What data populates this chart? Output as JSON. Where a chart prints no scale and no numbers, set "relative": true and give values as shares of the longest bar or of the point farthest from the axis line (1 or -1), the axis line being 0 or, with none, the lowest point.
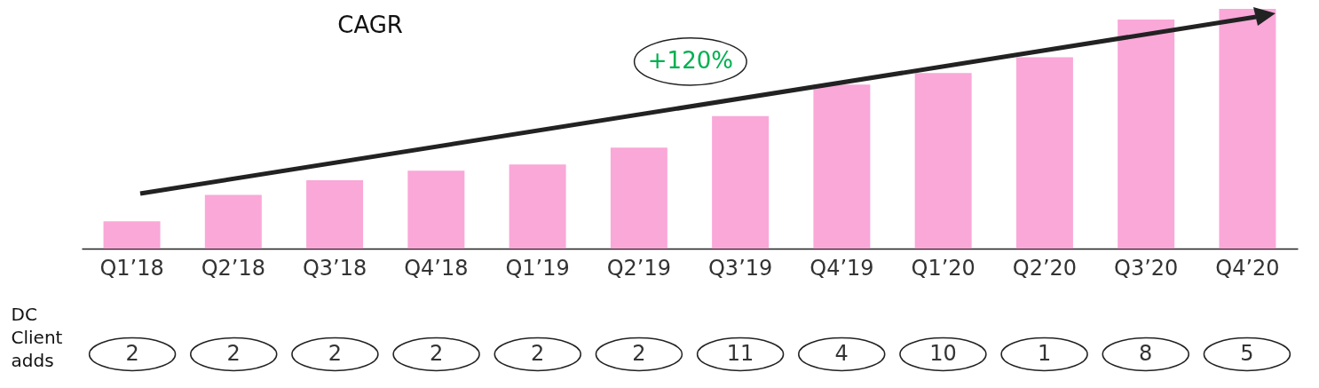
{
  "chart_data": [
    {
      "type": "bar",
      "relative": true,
      "categories": [
        "Q1’18",
        "Q2’18",
        "Q3’18",
        "Q4’18",
        "Q1’19",
        "Q2’19",
        "Q3’19",
        "Q4’19",
        "Q1’20",
        "Q2’20",
        "Q3’20",
        "Q4’20"
      ],
      "series": [
        {
          "color": "#f9a8d8",
          "values": [
            0.114,
            0.224,
            0.285,
            0.325,
            0.351,
            0.421,
            0.553,
            0.684,
            0.732,
            0.798,
            0.956,
            1
          ]
        }
      ],
      "annotations": [
        "CAGR",
        "+120%"
      ]
    },
    {
      "type": "other",
      "ylabel": "DC Client adds",
      "data_labels": true,
      "values": [
        2,
        2,
        2,
        2,
        2,
        2,
        11,
        4,
        10,
        1,
        8,
        5
      ]
    }
  ]
}
